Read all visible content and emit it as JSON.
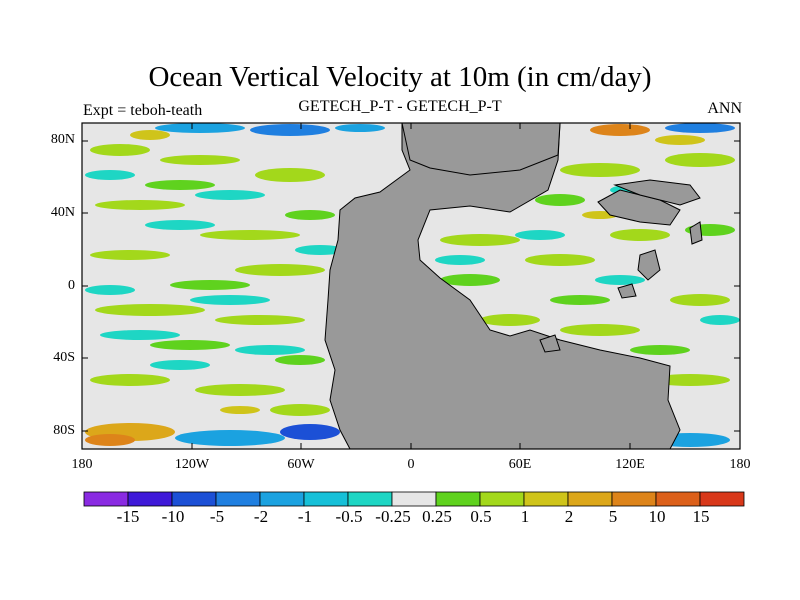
{
  "title": "Ocean Vertical Velocity at 10m (in cm/day)",
  "subtitle_left": "Expt = teboh-teath",
  "subtitle_center": "GETECH_P-T - GETECH_P-T",
  "subtitle_right": "ANN",
  "y_ticks": [
    "80N",
    "40N",
    "0",
    "40S",
    "80S"
  ],
  "x_ticks": [
    "180",
    "120W",
    "60W",
    "0",
    "60E",
    "120E",
    "180"
  ],
  "colorbar": {
    "labels": [
      "-15",
      "-10",
      "-5",
      "-2",
      "-1",
      "-0.5",
      "-0.25",
      "0.25",
      "0.5",
      "1",
      "2",
      "5",
      "10",
      "15"
    ],
    "colors": [
      "#8a2be2",
      "#3f19d8",
      "#1c50d6",
      "#1f7fe0",
      "#1ba2e0",
      "#16c0d8",
      "#1ed6c4",
      "#e6e6e6",
      "#5fd21e",
      "#a3d81b",
      "#cfc41a",
      "#dca71a",
      "#dd841a",
      "#dc601a",
      "#d8381a"
    ]
  },
  "colors": {
    "land": "#999999",
    "ocean_neutral": "#e6e6e6"
  }
}
